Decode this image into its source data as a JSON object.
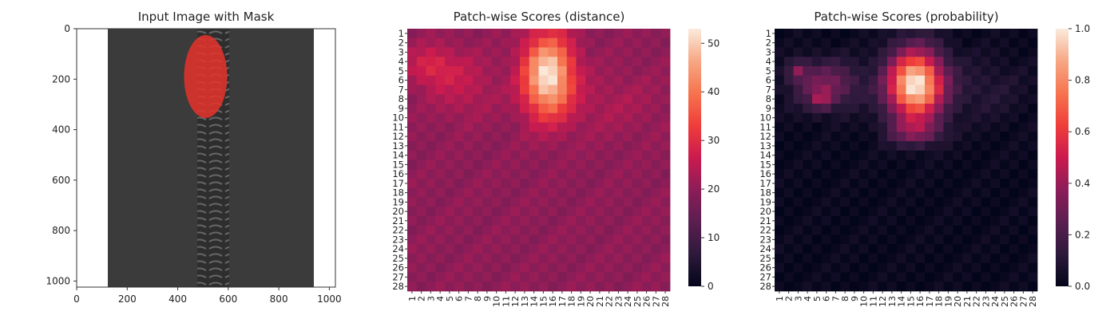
{
  "chart_data": [
    {
      "type": "image",
      "title": "Input Image with Mask",
      "xlim": [
        0,
        1024
      ],
      "ylim": [
        1024,
        0
      ],
      "x_ticks": [
        "0",
        "200",
        "400",
        "600",
        "800",
        "1000"
      ],
      "y_ticks": [
        "0",
        "200",
        "400",
        "600",
        "800",
        "1000"
      ],
      "zipper_tape_x_range": [
        125,
        930
      ],
      "mask_ellipse": {
        "center_x": 510,
        "center_y": 190,
        "radius_x": 85,
        "radius_y": 165
      },
      "colors": {
        "tape": "#3b3b3b",
        "teeth": "#555555",
        "mask": "#e8322b"
      }
    },
    {
      "type": "heatmap",
      "title": "Patch-wise Scores (distance)",
      "rows": 28,
      "cols": 28,
      "row_labels": [
        "1",
        "2",
        "3",
        "4",
        "5",
        "6",
        "7",
        "8",
        "9",
        "10",
        "11",
        "12",
        "13",
        "14",
        "15",
        "16",
        "17",
        "18",
        "19",
        "20",
        "21",
        "22",
        "23",
        "24",
        "25",
        "26",
        "27",
        "28"
      ],
      "col_labels": [
        "1",
        "2",
        "3",
        "4",
        "5",
        "6",
        "7",
        "8",
        "9",
        "10",
        "11",
        "12",
        "13",
        "14",
        "15",
        "16",
        "17",
        "18",
        "19",
        "20",
        "21",
        "22",
        "23",
        "24",
        "25",
        "26",
        "27",
        "28"
      ],
      "colorbar_range": [
        0,
        53
      ],
      "colorbar_ticks": [
        "0",
        "10",
        "20",
        "30",
        "40",
        "50"
      ],
      "base_value": 20,
      "hotspots": [
        {
          "row": 5.5,
          "col": 15.5,
          "sigma_row": 3.0,
          "sigma_col": 1.8,
          "amplitude": 33
        },
        {
          "row": 4.5,
          "col": 3.0,
          "sigma_row": 1.5,
          "sigma_col": 1.8,
          "amplitude": 8
        },
        {
          "row": 6.5,
          "col": 6.5,
          "sigma_row": 2.5,
          "sigma_col": 2.5,
          "amplitude": 5
        },
        {
          "row": 8.5,
          "col": 22,
          "sigma_row": 2.5,
          "sigma_col": 4.0,
          "amplitude": 3
        }
      ]
    },
    {
      "type": "heatmap",
      "title": "Patch-wise Scores (probability)",
      "rows": 28,
      "cols": 28,
      "row_labels": [
        "1",
        "2",
        "3",
        "4",
        "5",
        "6",
        "7",
        "8",
        "9",
        "10",
        "11",
        "12",
        "13",
        "14",
        "15",
        "16",
        "17",
        "18",
        "19",
        "20",
        "21",
        "22",
        "23",
        "24",
        "25",
        "26",
        "27",
        "28"
      ],
      "col_labels": [
        "1",
        "2",
        "3",
        "4",
        "5",
        "6",
        "7",
        "8",
        "9",
        "10",
        "11",
        "12",
        "13",
        "14",
        "15",
        "16",
        "17",
        "18",
        "19",
        "20",
        "21",
        "22",
        "23",
        "24",
        "25",
        "26",
        "27",
        "28"
      ],
      "colorbar_range": [
        0,
        1
      ],
      "colorbar_ticks": [
        "0.0",
        "0.2",
        "0.4",
        "0.6",
        "0.8",
        "1.0"
      ],
      "base_value": 0.02,
      "hotspots": [
        {
          "row": 6.5,
          "col": 15.5,
          "sigma_row": 2.6,
          "sigma_col": 2.1,
          "amplitude": 1.0
        },
        {
          "row": 6.5,
          "col": 6.0,
          "sigma_row": 1.8,
          "sigma_col": 2.5,
          "amplitude": 0.3
        },
        {
          "row": 8.0,
          "col": 5.5,
          "sigma_row": 0.7,
          "sigma_col": 0.7,
          "amplitude": 0.25
        },
        {
          "row": 5.0,
          "col": 3.0,
          "sigma_row": 0.7,
          "sigma_col": 0.7,
          "amplitude": 0.25
        },
        {
          "row": 11.5,
          "col": 15.5,
          "sigma_row": 1.0,
          "sigma_col": 2.0,
          "amplitude": 0.25
        },
        {
          "row": 7.0,
          "col": 23,
          "sigma_row": 2.5,
          "sigma_col": 3.0,
          "amplitude": 0.08
        }
      ]
    }
  ]
}
